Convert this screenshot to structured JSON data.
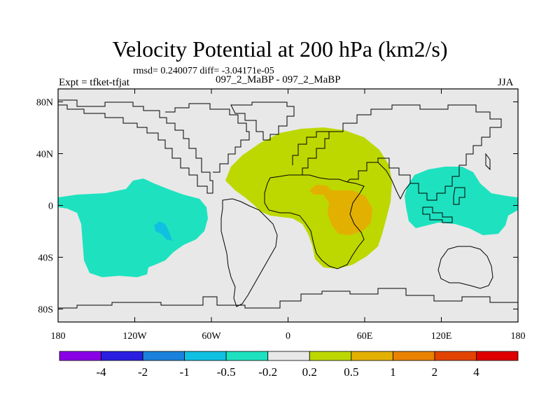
{
  "header": {
    "title": "Velocity Potential at 200 hPa (km2/s)",
    "rmsd": "rmsd= 0.240077 diff= -3.04171e-05",
    "expt": "Expt = tfket-tfjat",
    "center_label": "097_2_MaBP - 097_2_MaBP",
    "season": "JJA"
  },
  "chart_data": {
    "type": "heatmap",
    "title": "Velocity Potential at 200 hPa (km2/s)",
    "xlim": [
      -180,
      180
    ],
    "ylim": [
      -90,
      90
    ],
    "x_ticks": [
      {
        "value": -180,
        "label": "180"
      },
      {
        "value": -120,
        "label": "120W"
      },
      {
        "value": -60,
        "label": "60W"
      },
      {
        "value": 0,
        "label": "0"
      },
      {
        "value": 60,
        "label": "60E"
      },
      {
        "value": 120,
        "label": "120E"
      },
      {
        "value": 180,
        "label": "180"
      }
    ],
    "y_ticks": [
      {
        "value": 80,
        "label": "80N"
      },
      {
        "value": 40,
        "label": "40N"
      },
      {
        "value": 0,
        "label": "0"
      },
      {
        "value": -40,
        "label": "40S"
      },
      {
        "value": -80,
        "label": "80S"
      }
    ],
    "colorbar": {
      "labels": [
        "-4",
        "-2",
        "-1",
        "-0.5",
        "-0.2",
        "0.2",
        "0.5",
        "1",
        "2",
        "4"
      ],
      "colors": [
        "#8a00e6",
        "#2a1ee0",
        "#1a82dc",
        "#10c0e0",
        "#1ee2bf",
        "#e8e8e8",
        "#bcd800",
        "#e2b000",
        "#e88200",
        "#e24400",
        "#e00000"
      ]
    },
    "regions": [
      {
        "name": "Pacific negative anomaly",
        "color": "#1ee2bf",
        "range": [
          -0.5,
          -0.2
        ]
      },
      {
        "name": "Pacific inner minimum",
        "color": "#10c0e0",
        "range": [
          -1,
          -0.5
        ]
      },
      {
        "name": "Africa-Asia positive anomaly",
        "color": "#bcd800",
        "range": [
          0.2,
          0.5
        ]
      },
      {
        "name": "East Africa maximum",
        "color": "#e2b000",
        "range": [
          0.5,
          1
        ]
      },
      {
        "name": "Western Pacific negative anomaly",
        "color": "#1ee2bf",
        "range": [
          -0.5,
          -0.2
        ]
      }
    ]
  }
}
